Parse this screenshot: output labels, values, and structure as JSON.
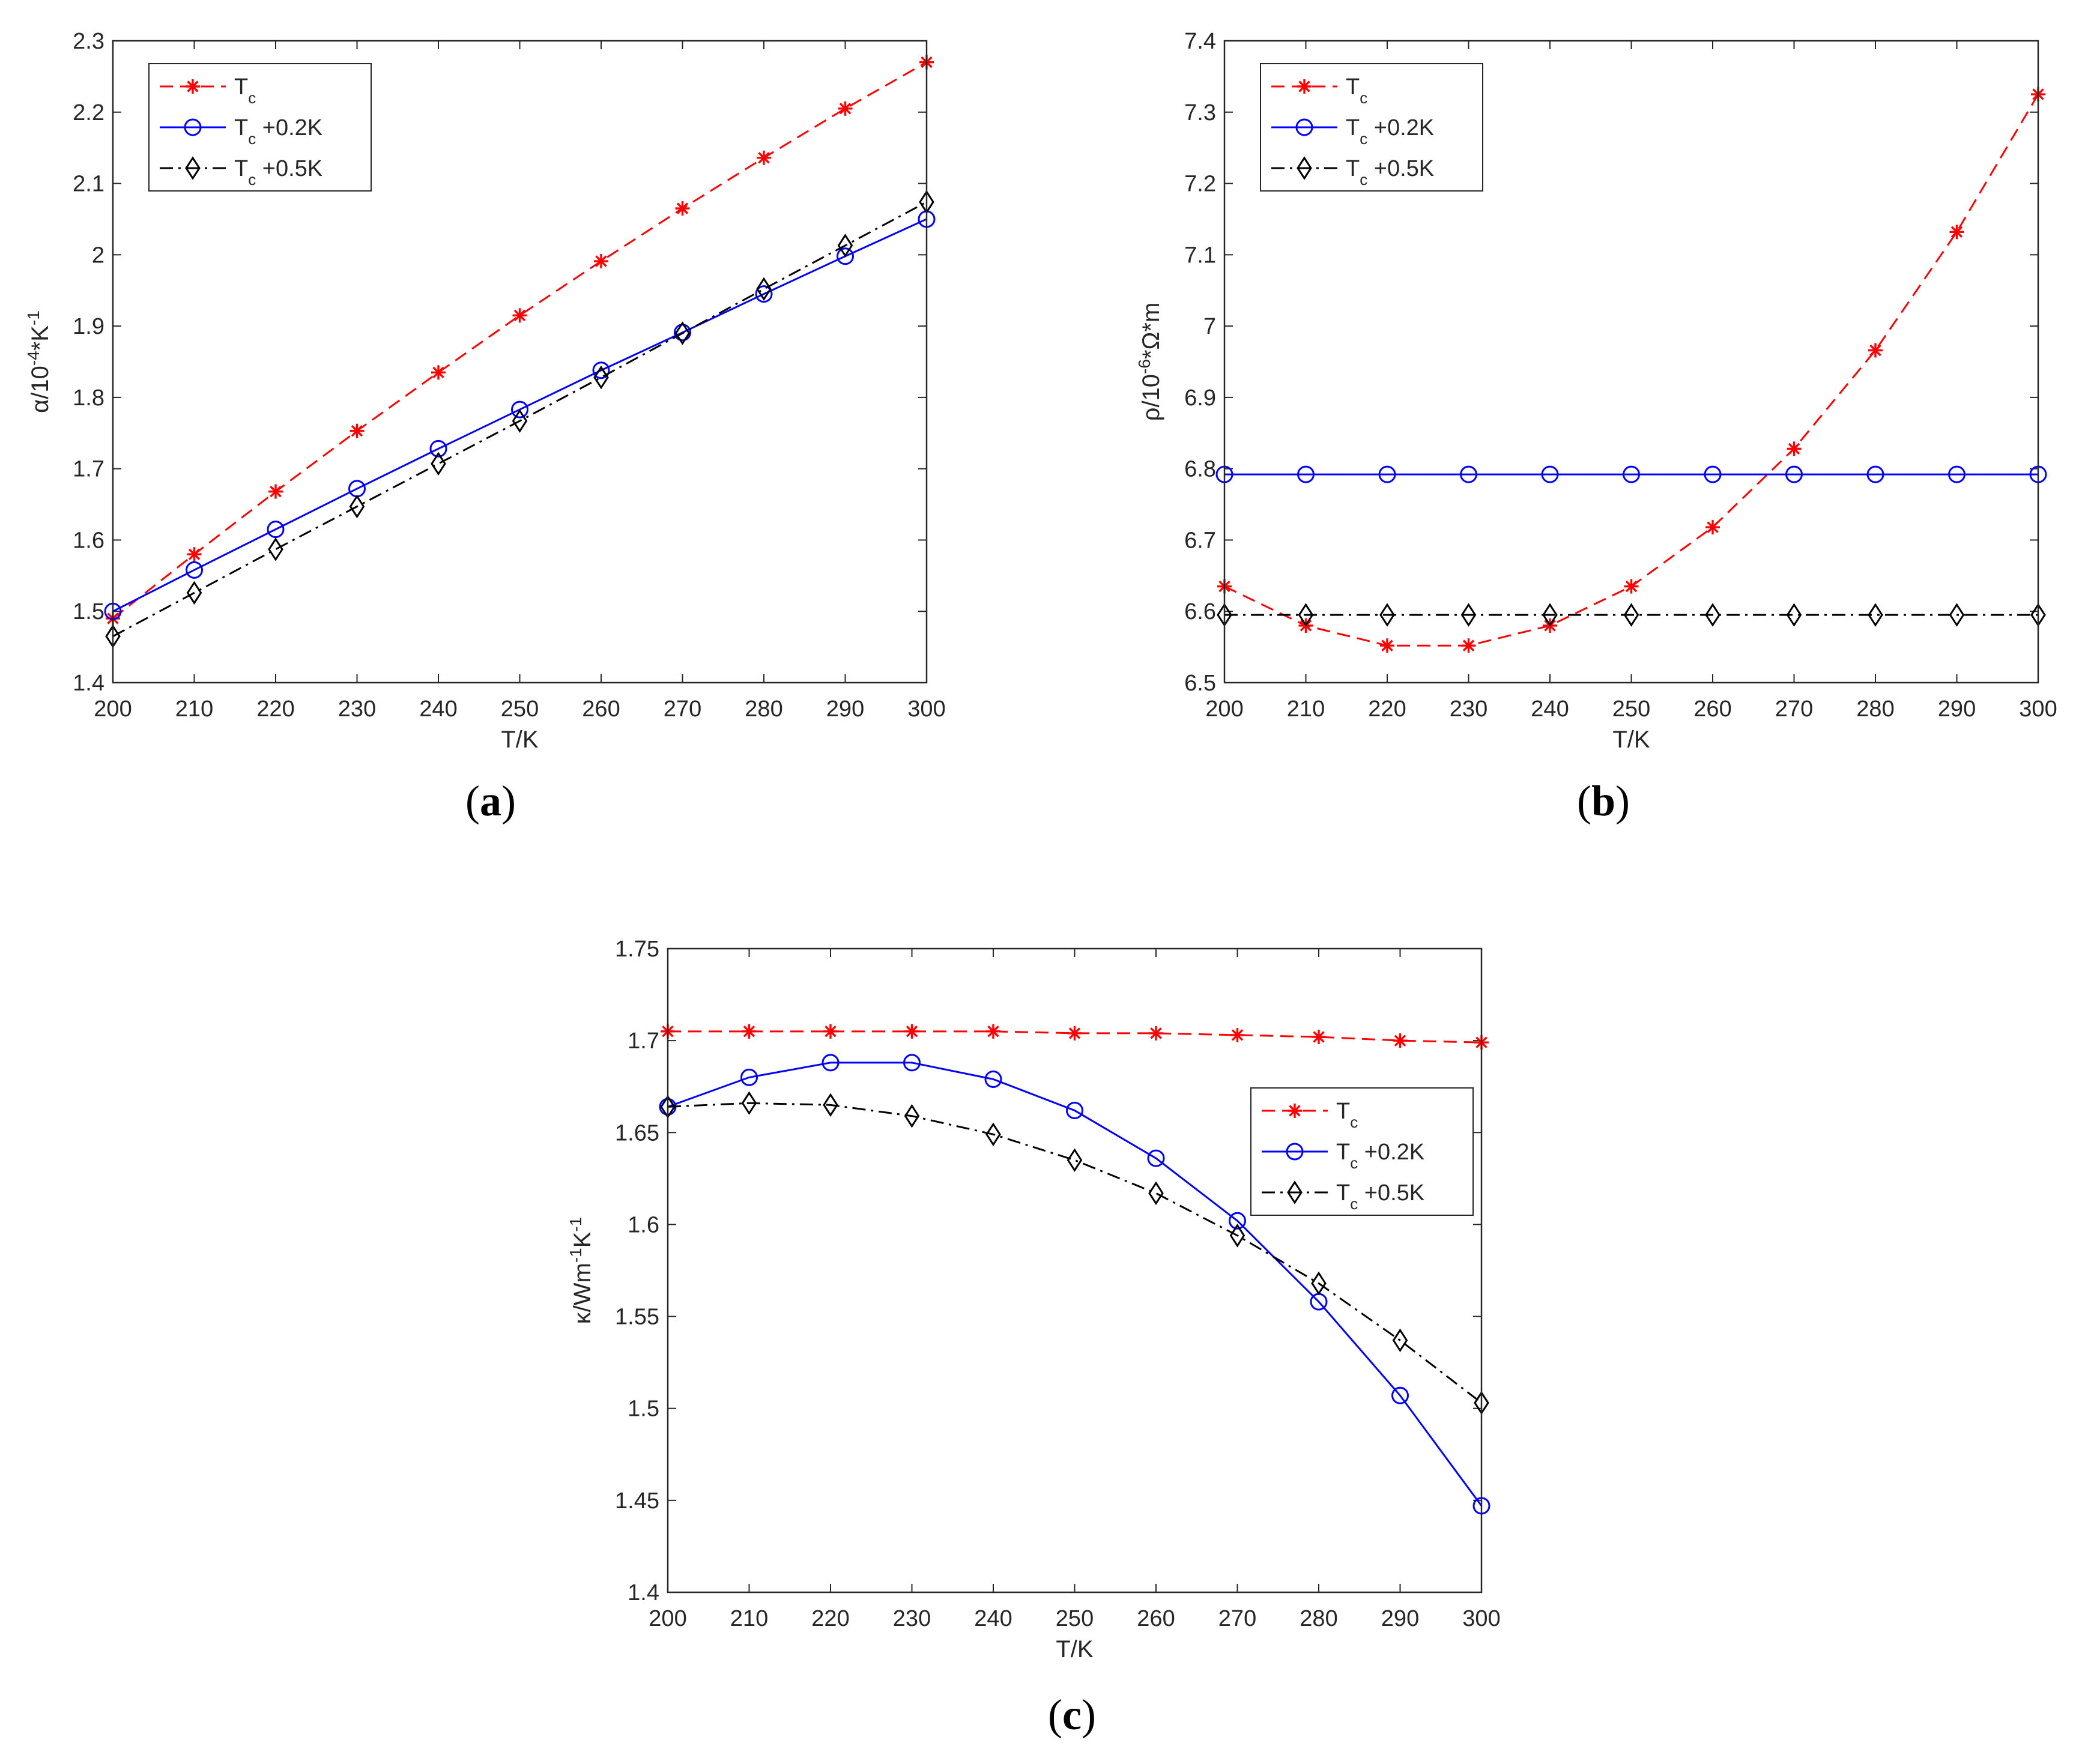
{
  "chart_data": [
    {
      "type": "line",
      "caption": "(a)",
      "caption_bold": "a",
      "xlabel": "T/K",
      "ylabel_main": "α/10",
      "ylabel_exp1": "-4",
      "ylabel_mid": "*K",
      "ylabel_exp2": "-1",
      "xlim": [
        200,
        300
      ],
      "ylim": [
        1.4,
        2.3
      ],
      "x_ticks": [
        200,
        210,
        220,
        230,
        240,
        250,
        260,
        270,
        280,
        290,
        300
      ],
      "y_ticks": [
        1.4,
        1.5,
        1.6,
        1.7,
        1.8,
        1.9,
        2,
        2.1,
        2.2,
        2.3
      ],
      "y_tick_labels": [
        "1.4",
        "1.5",
        "1.6",
        "1.7",
        "1.8",
        "1.9",
        "2",
        "2.1",
        "2.2",
        "2.3"
      ],
      "legend_position": "top-left",
      "x": [
        200,
        210,
        220,
        230,
        240,
        250,
        260,
        270,
        280,
        290,
        300
      ],
      "series": [
        {
          "name_main": "T",
          "name_sub": "c",
          "name_suffix": "",
          "color": "#ff0000",
          "dash": "dashed",
          "marker": "asterisk",
          "values": [
            1.49,
            1.58,
            1.668,
            1.753,
            1.835,
            1.915,
            1.991,
            2.065,
            2.136,
            2.205,
            2.27
          ]
        },
        {
          "name_main": "T",
          "name_sub": "c",
          "name_suffix": " +0.2K",
          "color": "#0000ff",
          "dash": "solid",
          "marker": "circle",
          "values": [
            1.5,
            1.558,
            1.615,
            1.672,
            1.728,
            1.783,
            1.838,
            1.891,
            1.945,
            1.998,
            2.05
          ]
        },
        {
          "name_main": "T",
          "name_sub": "c",
          "name_suffix": " +0.5K",
          "color": "#000000",
          "dash": "dashdot",
          "marker": "diamond",
          "values": [
            1.465,
            1.526,
            1.587,
            1.647,
            1.707,
            1.767,
            1.828,
            1.89,
            1.952,
            2.013,
            2.074
          ]
        }
      ]
    },
    {
      "type": "line",
      "caption": "(b)",
      "caption_bold": "b",
      "xlabel": "T/K",
      "ylabel_main": "ρ/10",
      "ylabel_exp1": "-6",
      "ylabel_mid": "*Ω*m",
      "ylabel_exp2": "",
      "xlim": [
        200,
        300
      ],
      "ylim": [
        6.5,
        7.4
      ],
      "x_ticks": [
        200,
        210,
        220,
        230,
        240,
        250,
        260,
        270,
        280,
        290,
        300
      ],
      "y_ticks": [
        6.5,
        6.6,
        6.7,
        6.8,
        6.9,
        7.0,
        7.1,
        7.2,
        7.3,
        7.4
      ],
      "y_tick_labels": [
        "6.5",
        "6.6",
        "6.7",
        "6.8",
        "6.9",
        "7",
        "7.1",
        "7.2",
        "7.3",
        "7.4"
      ],
      "legend_position": "top-left",
      "x": [
        200,
        210,
        220,
        230,
        240,
        250,
        260,
        270,
        280,
        290,
        300
      ],
      "series": [
        {
          "name_main": "T",
          "name_sub": "c",
          "name_suffix": "",
          "color": "#ff0000",
          "dash": "dashed",
          "marker": "asterisk",
          "values": [
            6.635,
            6.58,
            6.552,
            6.552,
            6.58,
            6.635,
            6.718,
            6.828,
            6.966,
            7.132,
            7.325
          ]
        },
        {
          "name_main": "T",
          "name_sub": "c",
          "name_suffix": " +0.2K",
          "color": "#0000ff",
          "dash": "solid",
          "marker": "circle",
          "values": [
            6.792,
            6.792,
            6.792,
            6.792,
            6.792,
            6.792,
            6.792,
            6.792,
            6.792,
            6.792,
            6.792
          ]
        },
        {
          "name_main": "T",
          "name_sub": "c",
          "name_suffix": " +0.5K",
          "color": "#000000",
          "dash": "dashdot",
          "marker": "diamond",
          "values": [
            6.595,
            6.595,
            6.595,
            6.595,
            6.595,
            6.595,
            6.595,
            6.595,
            6.595,
            6.595,
            6.595
          ]
        }
      ]
    },
    {
      "type": "line",
      "caption": "(c)",
      "caption_bold": "c",
      "xlabel": "T/K",
      "ylabel_main": "κ/Wm",
      "ylabel_exp1": "-1",
      "ylabel_mid": "K",
      "ylabel_exp2": "-1",
      "xlim": [
        200,
        300
      ],
      "ylim": [
        1.4,
        1.75
      ],
      "x_ticks": [
        200,
        210,
        220,
        230,
        240,
        250,
        260,
        270,
        280,
        290,
        300
      ],
      "y_ticks": [
        1.4,
        1.45,
        1.5,
        1.55,
        1.6,
        1.65,
        1.7,
        1.75
      ],
      "y_tick_labels": [
        "1.4",
        "1.45",
        "1.5",
        "1.55",
        "1.6",
        "1.65",
        "1.7",
        "1.75"
      ],
      "legend_position": "right-middle",
      "x": [
        200,
        210,
        220,
        230,
        240,
        250,
        260,
        270,
        280,
        290,
        300
      ],
      "series": [
        {
          "name_main": "T",
          "name_sub": "c",
          "name_suffix": "",
          "color": "#ff0000",
          "dash": "dashed",
          "marker": "asterisk",
          "values": [
            1.705,
            1.705,
            1.705,
            1.705,
            1.705,
            1.704,
            1.704,
            1.703,
            1.702,
            1.7,
            1.699
          ]
        },
        {
          "name_main": "T",
          "name_sub": "c",
          "name_suffix": " +0.2K",
          "color": "#0000ff",
          "dash": "solid",
          "marker": "circle",
          "values": [
            1.664,
            1.68,
            1.688,
            1.688,
            1.679,
            1.662,
            1.636,
            1.602,
            1.558,
            1.507,
            1.447
          ]
        },
        {
          "name_main": "T",
          "name_sub": "c",
          "name_suffix": " +0.5K",
          "color": "#000000",
          "dash": "dashdot",
          "marker": "diamond",
          "values": [
            1.664,
            1.666,
            1.665,
            1.659,
            1.649,
            1.635,
            1.617,
            1.594,
            1.568,
            1.537,
            1.503
          ]
        }
      ]
    }
  ]
}
